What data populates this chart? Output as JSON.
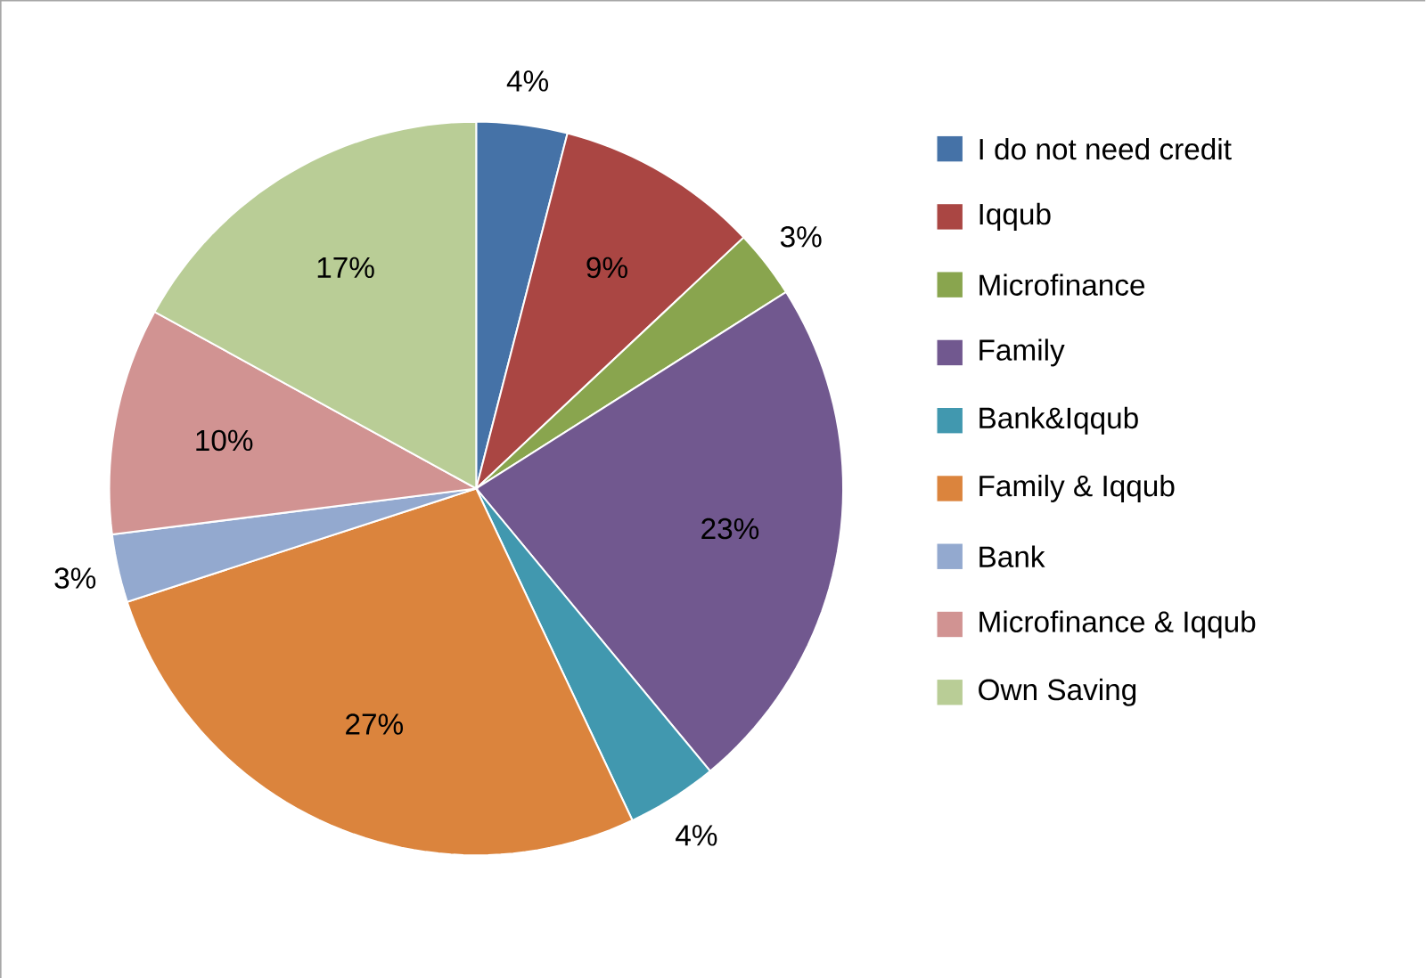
{
  "chart_data": {
    "type": "pie",
    "categories": [
      "I do not need credit",
      "Iqqub",
      "Microfinance",
      "Family",
      "Bank&Iqqub",
      "Family & Iqqub",
      "Bank",
      "Microfinance & Iqqub",
      "Own Saving"
    ],
    "values": [
      4,
      9,
      3,
      23,
      4,
      27,
      3,
      10,
      17
    ],
    "value_labels": [
      "4%",
      "9%",
      "3%",
      "23%",
      "4%",
      "27%",
      "3%",
      "10%",
      "17%"
    ],
    "colors": [
      "#4572a7",
      "#aa4643",
      "#89a54e",
      "#71588f",
      "#4198af",
      "#db843d",
      "#93a9cf",
      "#d19392",
      "#b9cd96"
    ],
    "legend": "right"
  }
}
